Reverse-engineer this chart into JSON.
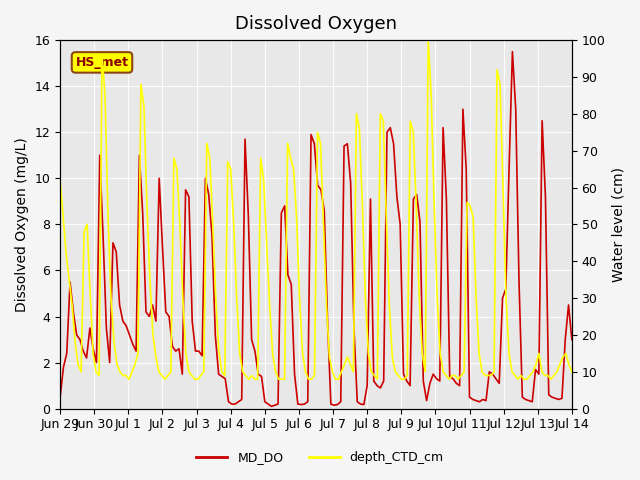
{
  "title": "Dissolved Oxygen",
  "ylabel_left": "Dissolved Oxygen (mg/L)",
  "ylabel_right": "Water level (cm)",
  "ylim_left": [
    0,
    16
  ],
  "ylim_right": [
    0,
    100
  ],
  "yticks_left": [
    0,
    2,
    4,
    6,
    8,
    10,
    12,
    14,
    16
  ],
  "yticks_right": [
    0,
    10,
    20,
    30,
    40,
    50,
    60,
    70,
    80,
    90,
    100
  ],
  "xtick_labels": [
    "Jun 29",
    "Jun 30",
    "Jul 1",
    "Jul 2",
    "Jul 3",
    "Jul 4",
    "Jul 5",
    "Jul 6",
    "Jul 7",
    "Jul 8",
    "Jul 9",
    "Jul 10",
    "Jul 11",
    "Jul 12",
    "Jul 13",
    "Jul 14"
  ],
  "legend_labels": [
    "MD_DO",
    "depth_CTD_cm"
  ],
  "color_do": "#cc0000",
  "color_depth": "#ffff00",
  "annotation_text": "HS_met",
  "annotation_bgcolor": "#ffff00",
  "annotation_edgecolor": "#8B4513",
  "background_color": "#f5f5f5",
  "plot_bgcolor": "#e8e8e8",
  "title_fontsize": 13,
  "axis_label_fontsize": 10,
  "tick_fontsize": 9,
  "md_do": [
    0.5,
    1.8,
    2.4,
    5.5,
    4.2,
    3.2,
    3.0,
    2.5,
    2.2,
    3.5,
    2.6,
    2.0,
    11.0,
    7.5,
    3.5,
    2.0,
    7.2,
    6.8,
    4.5,
    3.8,
    3.6,
    3.2,
    2.8,
    2.5,
    11.0,
    8.5,
    4.2,
    4.0,
    4.5,
    3.8,
    10.0,
    7.0,
    4.2,
    4.0,
    2.7,
    2.5,
    2.6,
    1.5,
    9.5,
    9.2,
    3.8,
    2.5,
    2.5,
    2.3,
    10.0,
    9.3,
    7.5,
    3.2,
    1.5,
    1.4,
    1.3,
    0.3,
    0.2,
    0.2,
    0.3,
    0.4,
    11.7,
    8.4,
    3.0,
    2.5,
    1.5,
    1.4,
    0.3,
    0.2,
    0.1,
    0.15,
    0.2,
    8.5,
    8.8,
    5.8,
    5.4,
    1.5,
    0.2,
    0.18,
    0.2,
    0.3,
    11.9,
    11.5,
    9.7,
    9.5,
    8.6,
    3.8,
    0.2,
    0.15,
    0.18,
    0.3,
    11.4,
    11.5,
    9.8,
    3.5,
    0.3,
    0.2,
    0.18,
    1.0,
    9.1,
    1.2,
    1.0,
    0.9,
    1.2,
    12.0,
    12.2,
    11.5,
    9.2,
    8.0,
    1.5,
    1.2,
    1.0,
    9.1,
    9.3,
    8.1,
    1.2,
    0.35,
    1.1,
    1.5,
    1.3,
    1.2,
    12.2,
    9.1,
    1.4,
    1.3,
    1.1,
    1.0,
    13.0,
    10.4,
    0.5,
    0.4,
    0.35,
    0.3,
    0.4,
    0.35,
    1.6,
    1.5,
    1.3,
    1.1,
    4.8,
    5.2,
    10.5,
    15.5,
    13.0,
    5.5,
    0.5,
    0.4,
    0.35,
    0.3,
    1.7,
    1.5,
    12.5,
    9.2,
    0.6,
    0.5,
    0.45,
    0.4,
    0.45,
    3.0,
    4.5,
    3.0
  ],
  "depth_ctd": [
    62,
    52,
    42,
    35,
    28,
    18,
    12,
    10,
    48,
    50,
    32,
    15,
    10,
    9,
    96,
    85,
    52,
    30,
    18,
    12,
    10,
    9,
    9,
    8,
    10,
    12,
    15,
    88,
    82,
    55,
    35,
    20,
    14,
    10,
    9,
    8,
    9,
    10,
    68,
    65,
    50,
    30,
    15,
    10,
    9,
    8,
    8,
    9,
    10,
    72,
    68,
    50,
    30,
    16,
    10,
    9,
    67,
    65,
    50,
    30,
    15,
    10,
    9,
    8,
    9,
    8,
    8,
    68,
    62,
    45,
    28,
    15,
    10,
    8,
    8,
    8,
    72,
    68,
    65,
    52,
    30,
    15,
    10,
    8,
    8,
    9,
    75,
    72,
    50,
    28,
    14,
    10,
    8,
    8,
    10,
    12,
    14,
    12,
    10,
    80,
    76,
    55,
    30,
    15,
    10,
    9,
    8,
    80,
    78,
    52,
    28,
    14,
    10,
    9,
    8,
    8,
    9,
    78,
    75,
    55,
    30,
    15,
    10,
    100,
    85,
    55,
    30,
    15,
    10,
    9,
    8,
    9,
    9,
    8,
    9,
    10,
    56,
    55,
    52,
    30,
    15,
    10,
    9,
    9,
    9,
    10,
    92,
    88,
    60,
    30,
    15,
    10,
    9,
    8,
    9,
    8,
    8,
    9,
    10,
    12,
    15,
    10,
    9,
    9,
    8,
    9,
    10,
    12,
    14,
    15,
    12,
    10
  ]
}
